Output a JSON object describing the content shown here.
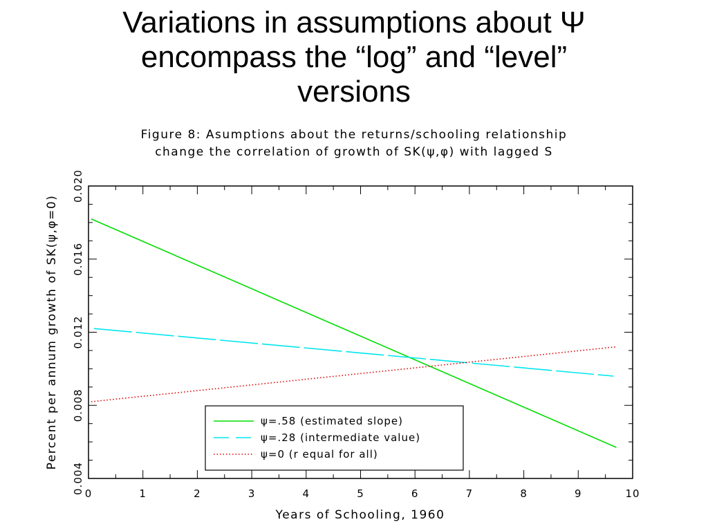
{
  "slide": {
    "title_lines": [
      "Variations in assumptions about Ψ",
      "encompass the “log” and “level”",
      "versions"
    ]
  },
  "chart_data": {
    "type": "line",
    "title_lines": [
      "Figure 8: Asumptions about the returns/schooling relationship",
      "change the correlation of growth of SK(ψ,φ) with lagged S"
    ],
    "xlabel": "Years of Schooling, 1960",
    "ylabel": "Percent per annum growth of SK(ψ,φ=0)",
    "xlim": [
      0,
      10
    ],
    "ylim": [
      0.004,
      0.02
    ],
    "x_ticks": [
      "0",
      "1",
      "2",
      "3",
      "4",
      "5",
      "6",
      "7",
      "8",
      "9",
      "10"
    ],
    "y_ticks": [
      "0.004",
      "0.008",
      "0.012",
      "0.016",
      "0.020"
    ],
    "legend_position": "bottom-center",
    "grid": false,
    "series": [
      {
        "name": "ψ=.58 (estimated slope)",
        "color": "#00dd00",
        "style": "solid",
        "x": [
          0.05,
          9.7
        ],
        "y": [
          0.0182,
          0.0057
        ]
      },
      {
        "name": "ψ=.28 (intermediate value)",
        "color": "#00e5ee",
        "style": "dashed",
        "x": [
          0.1,
          9.65
        ],
        "y": [
          0.0122,
          0.0096
        ]
      },
      {
        "name": "ψ=0 (r equal for all)",
        "color": "#dd0000",
        "style": "dotted",
        "x": [
          0.05,
          9.7
        ],
        "y": [
          0.0082,
          0.0112
        ]
      }
    ]
  }
}
